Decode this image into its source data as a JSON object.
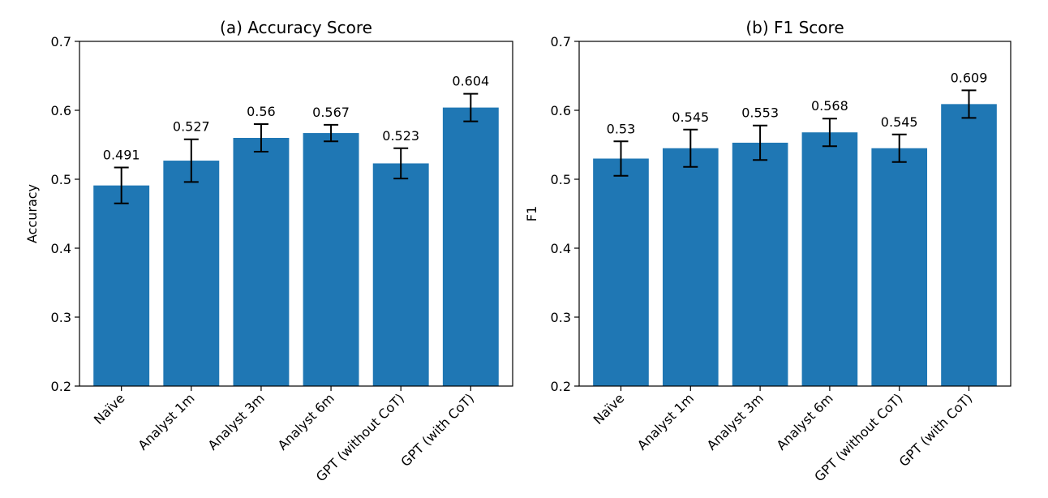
{
  "chart_data": [
    {
      "type": "bar",
      "title": "(a) Accuracy Score",
      "xlabel": "",
      "ylabel": "Accuracy",
      "categories": [
        "Naïve",
        "Analyst 1m",
        "Analyst 3m",
        "Analyst 6m",
        "GPT (without CoT)",
        "GPT (with CoT)"
      ],
      "values": [
        0.491,
        0.527,
        0.56,
        0.567,
        0.523,
        0.604
      ],
      "value_labels": [
        "0.491",
        "0.527",
        "0.56",
        "0.567",
        "0.523",
        "0.604"
      ],
      "errors": [
        0.026,
        0.031,
        0.02,
        0.012,
        0.022,
        0.02
      ],
      "ylim": [
        0.2,
        0.7
      ],
      "yticks": [
        "0.2",
        "0.3",
        "0.4",
        "0.5",
        "0.6",
        "0.7"
      ],
      "bar_color": "#1f77b4",
      "error_color": "#000000"
    },
    {
      "type": "bar",
      "title": "(b) F1 Score",
      "xlabel": "",
      "ylabel": "F1",
      "categories": [
        "Naïve",
        "Analyst 1m",
        "Analyst 3m",
        "Analyst 6m",
        "GPT (without CoT)",
        "GPT (with CoT)"
      ],
      "values": [
        0.53,
        0.545,
        0.553,
        0.568,
        0.545,
        0.609
      ],
      "value_labels": [
        "0.53",
        "0.545",
        "0.553",
        "0.568",
        "0.545",
        "0.609"
      ],
      "errors": [
        0.025,
        0.027,
        0.025,
        0.02,
        0.02,
        0.02
      ],
      "ylim": [
        0.2,
        0.7
      ],
      "yticks": [
        "0.2",
        "0.3",
        "0.4",
        "0.5",
        "0.6",
        "0.7"
      ],
      "bar_color": "#1f77b4",
      "error_color": "#000000"
    }
  ]
}
